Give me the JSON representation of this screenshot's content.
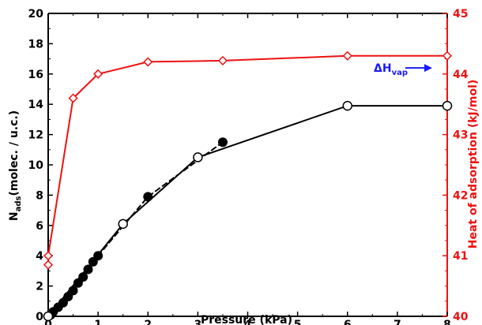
{
  "chart_data": {
    "type": "line",
    "xlabel": "Pressure (kPa)",
    "ylabel": "N",
    "ylabel_subscript": "ads",
    "ylabel_units": "(molec. / u.c.)",
    "y2label": "Heat of adsorption (kJ/mol)",
    "xlim": [
      0,
      8
    ],
    "ylim": [
      0,
      20
    ],
    "y2lim": [
      40,
      45
    ],
    "x_ticks": [
      "0",
      "1",
      "2",
      "3",
      "4",
      "5",
      "6",
      "7",
      "8"
    ],
    "y_ticks": [
      "0",
      "2",
      "4",
      "6",
      "8",
      "10",
      "12",
      "14",
      "16",
      "18",
      "20"
    ],
    "y2_ticks": [
      "40",
      "41",
      "42",
      "43",
      "44",
      "45"
    ],
    "grid": false,
    "annotation": {
      "text": "ΔH",
      "subscript": "vap",
      "y2": 44.1,
      "color": "#1a1aff"
    },
    "series": [
      {
        "axis": "y",
        "color": "#000000",
        "marker": "circle-filled",
        "x": [
          0,
          0.05,
          0.1,
          0.2,
          0.3,
          0.4,
          0.5,
          0.6,
          0.7,
          0.8,
          0.9,
          1.0,
          2.0,
          3.5
        ],
        "values": [
          0,
          0.1,
          0.3,
          0.6,
          0.9,
          1.3,
          1.7,
          2.2,
          2.6,
          3.1,
          3.6,
          4.0,
          7.9,
          11.5
        ]
      },
      {
        "axis": "y",
        "color": "#000000",
        "marker": "circle-open",
        "x": [
          0,
          1.5,
          3.0,
          6.0,
          8.0
        ],
        "values": [
          0,
          6.1,
          10.5,
          13.9,
          13.9
        ]
      },
      {
        "axis": "y2",
        "color": "#ee1111",
        "marker": "diamond-open",
        "x": [
          0,
          0,
          0.5,
          1.0,
          2.0,
          3.5,
          6.0,
          8.0
        ],
        "values": [
          40.85,
          41.0,
          43.6,
          44.0,
          44.2,
          44.22,
          44.3,
          44.3
        ]
      }
    ]
  }
}
